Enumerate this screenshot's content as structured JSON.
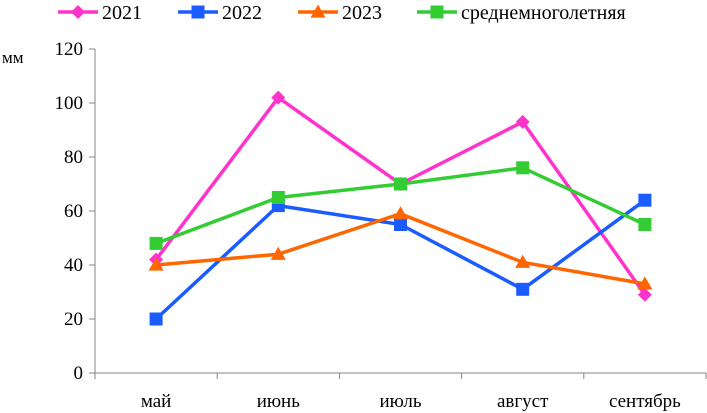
{
  "chart_data": {
    "type": "line",
    "ylabel": "мм",
    "ylim": [
      0,
      120
    ],
    "yticks": [
      0,
      20,
      40,
      60,
      80,
      100,
      120
    ],
    "grid": false,
    "legend_position": "top",
    "categories": [
      "май",
      "июнь",
      "июль",
      "август",
      "сентябрь"
    ],
    "series": [
      {
        "name": "2021",
        "color": "#ff33cc",
        "marker": "diamond",
        "values": [
          42,
          102,
          70,
          93,
          29
        ]
      },
      {
        "name": "2022",
        "color": "#1a5cff",
        "marker": "square",
        "values": [
          20,
          62,
          55,
          31,
          64
        ]
      },
      {
        "name": "2023",
        "color": "#ff6600",
        "marker": "triangle",
        "values": [
          40,
          44,
          59,
          41,
          33
        ]
      },
      {
        "name": "среднемноголетняя",
        "color": "#33cc33",
        "marker": "square",
        "values": [
          48,
          65,
          70,
          76,
          55
        ]
      }
    ]
  }
}
